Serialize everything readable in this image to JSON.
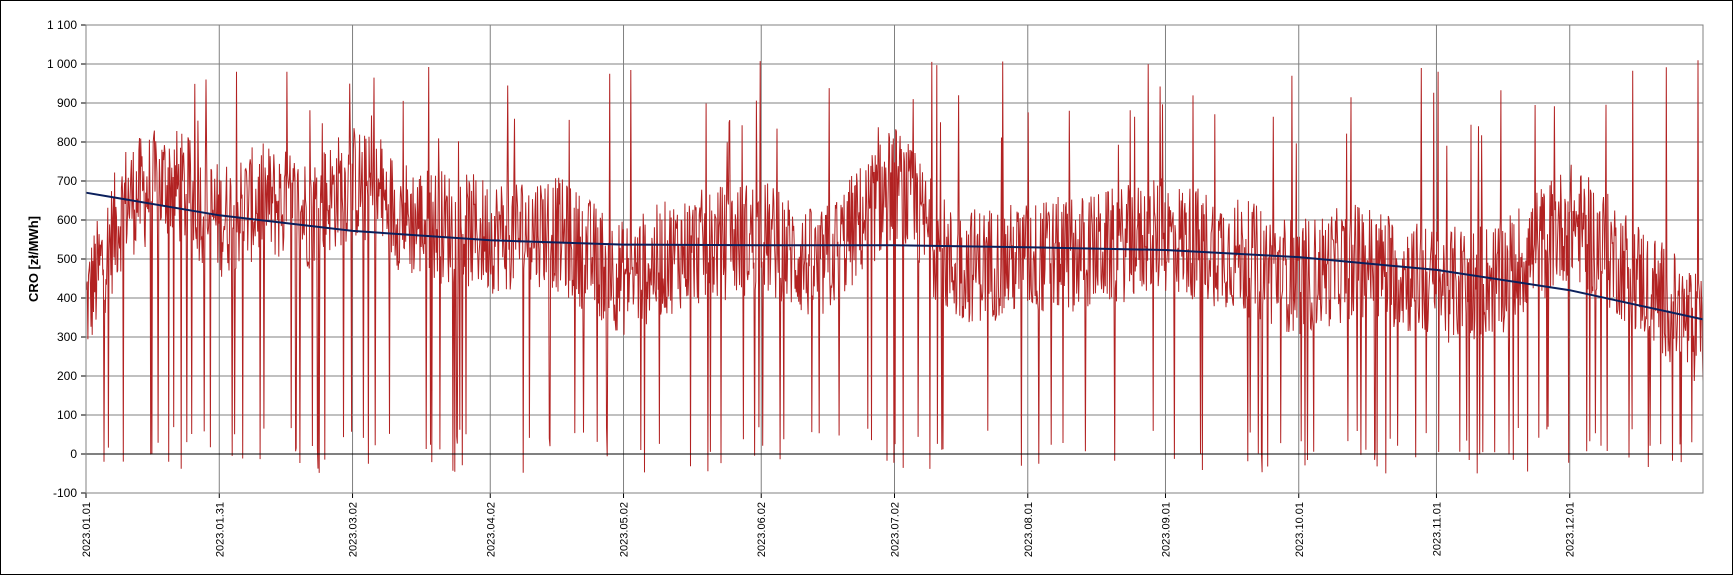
{
  "chart_data": {
    "type": "line",
    "ylabel": "CRO [zł/MWh]",
    "ylim": [
      -100,
      1100
    ],
    "y_ticks": [
      -100,
      0,
      100,
      200,
      300,
      400,
      500,
      600,
      700,
      800,
      900,
      1000,
      1100
    ],
    "y_tick_labels": [
      "-100",
      "0",
      "100",
      "200",
      "300",
      "400",
      "500",
      "600",
      "700",
      "800",
      "900",
      "1 000",
      "1 100"
    ],
    "xlim": [
      "2023-01-01",
      "2023-12-31"
    ],
    "x_tick_labels": [
      "2023.01.01",
      "2023.01.31",
      "2023.03.02",
      "2023.04.02",
      "2023.05.02",
      "2023.06.02",
      "2023.07.02",
      "2023.08.01",
      "2023.09.01",
      "2023.10.01",
      "2023.11.01",
      "2023.12.01"
    ],
    "x_ticks": [
      "2023-01-01",
      "2023-01-31",
      "2023-03-02",
      "2023-04-02",
      "2023-05-02",
      "2023-06-02",
      "2023-07-02",
      "2023-08-01",
      "2023-09-01",
      "2023-10-01",
      "2023-11-01",
      "2023-12-01"
    ],
    "grid": true,
    "legend": "none",
    "colors": {
      "series": "#b22222",
      "trend": "#0a1f5c",
      "grid": "#808080"
    },
    "series": [
      {
        "role": "hourly values",
        "x": [
          "2023-01-01",
          "2023-01-10",
          "2023-01-20",
          "2023-01-31",
          "2023-02-10",
          "2023-02-20",
          "2023-03-02",
          "2023-03-15",
          "2023-04-02",
          "2023-04-15",
          "2023-05-02",
          "2023-05-15",
          "2023-06-02",
          "2023-06-15",
          "2023-07-02",
          "2023-07-15",
          "2023-08-01",
          "2023-08-15",
          "2023-09-01",
          "2023-09-15",
          "2023-10-01",
          "2023-10-15",
          "2023-11-01",
          "2023-11-15",
          "2023-12-01",
          "2023-12-15",
          "2023-12-31"
        ],
        "values": [
          380,
          650,
          700,
          600,
          650,
          620,
          700,
          600,
          560,
          580,
          450,
          520,
          560,
          470,
          700,
          480,
          500,
          520,
          560,
          520,
          450,
          500,
          430,
          450,
          600,
          470,
          300
        ],
        "max": 1010,
        "min": -50
      },
      {
        "role": "trend",
        "x": [
          "2023-01-01",
          "2023-01-31",
          "2023-03-02",
          "2023-04-02",
          "2023-05-02",
          "2023-06-02",
          "2023-07-02",
          "2023-08-01",
          "2023-09-01",
          "2023-10-01",
          "2023-11-01",
          "2023-12-01",
          "2023-12-31"
        ],
        "values": [
          670,
          612,
          572,
          548,
          537,
          535,
          535,
          530,
          523,
          505,
          472,
          420,
          345
        ]
      }
    ]
  }
}
